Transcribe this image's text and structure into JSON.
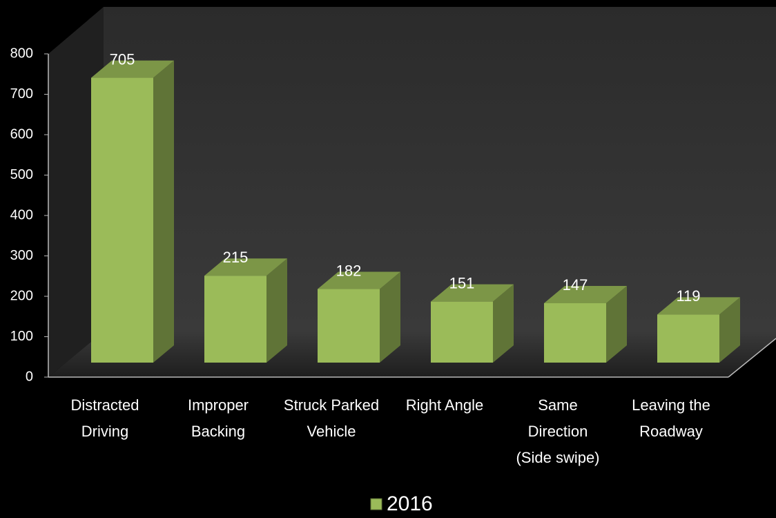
{
  "chart_data": {
    "type": "bar3d",
    "categories": [
      "Distracted Driving",
      "Improper Backing",
      "Struck Parked Vehicle",
      "Right Angle",
      "Same Direction (Side swipe)",
      "Leaving the Roadway"
    ],
    "series": [
      {
        "name": "2016",
        "color": "#9bbb59",
        "values": [
          705,
          215,
          182,
          151,
          147,
          119
        ]
      }
    ],
    "ylim": [
      0,
      800
    ],
    "yticks": [
      0,
      100,
      200,
      300,
      400,
      500,
      600,
      700,
      800
    ],
    "legend": "bottom"
  }
}
